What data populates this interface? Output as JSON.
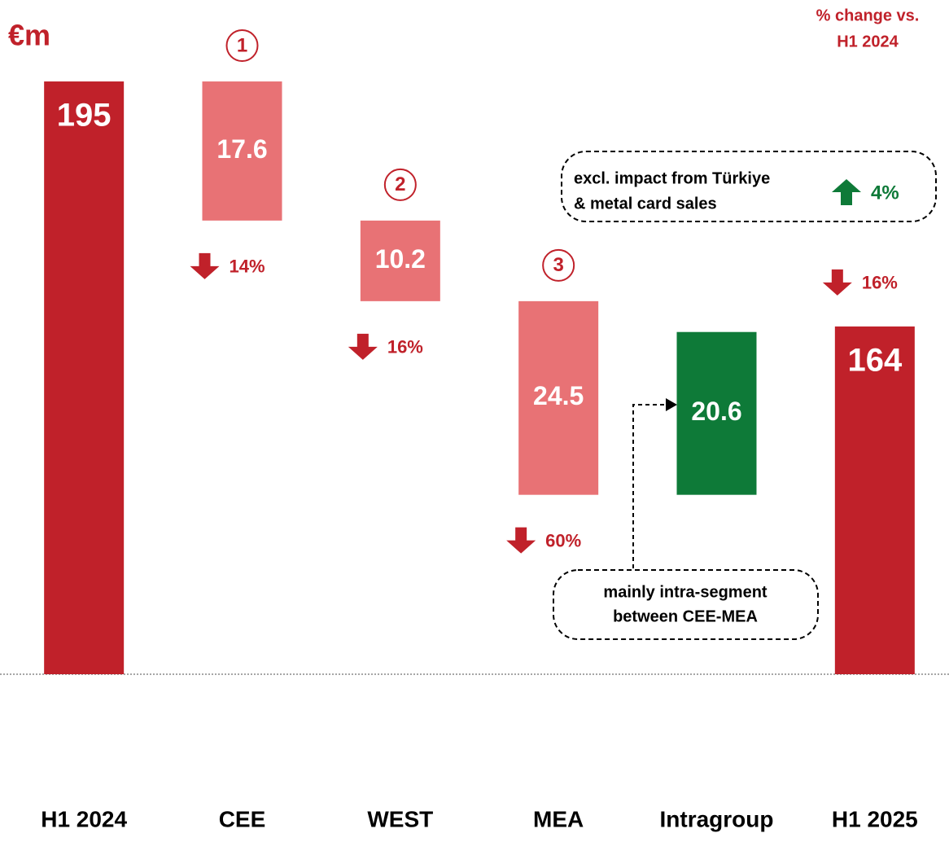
{
  "chart_data": {
    "type": "waterfall",
    "title": "€m",
    "change_header": [
      "% change vs.",
      "H1 2024"
    ],
    "categories": [
      "H1 2024",
      "CEE",
      "WEST",
      "MEA",
      "Intragroup",
      "H1 2025"
    ],
    "values": [
      195,
      -17.6,
      -10.2,
      -24.5,
      20.6,
      164
    ],
    "value_labels": [
      "195",
      "17.6",
      "10.2",
      "24.5",
      "20.6",
      "164"
    ],
    "colors": [
      "#c0212a",
      "#e87275",
      "#e87275",
      "#e87275",
      "#0e7a38",
      "#c0212a"
    ],
    "markers": [
      null,
      "1",
      "2",
      "3",
      null,
      null
    ],
    "change_values": [
      null,
      -14,
      -16,
      -60,
      null,
      -16
    ],
    "change_labels": [
      null,
      "14%",
      "16%",
      "60%",
      null,
      "16%"
    ],
    "adjusted_change": {
      "text": [
        "excl. impact from Türkiye",
        "& metal card sales"
      ],
      "value": 4,
      "label": "4%",
      "color": "#0e7a38"
    },
    "intragroup_note": [
      "mainly intra-segment",
      "between CEE-MEA"
    ],
    "ylim": [
      120,
      200
    ]
  }
}
